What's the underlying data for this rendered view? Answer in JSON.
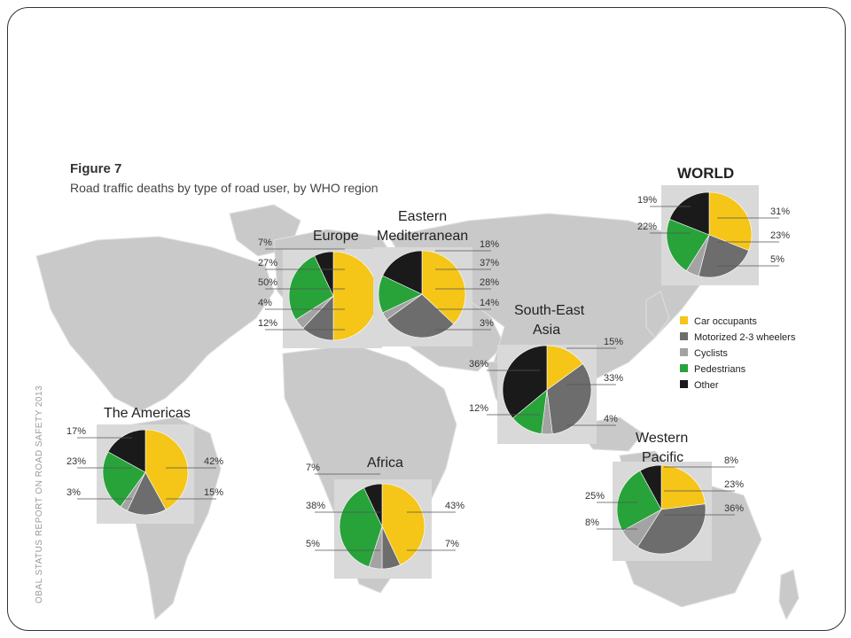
{
  "figure": {
    "label": "Figure 7",
    "subtitle": "Road traffic deaths by type of road user, by WHO region",
    "source": "OBAL STATUS REPORT ON ROAD SAFETY 2013"
  },
  "colors": {
    "car_occupants": "#f5c518",
    "motorized_2_3_wheelers": "#6d6d6d",
    "cyclists": "#a3a3a3",
    "pedestrians": "#27a33a",
    "other": "#1a1a1a"
  },
  "legend": [
    {
      "key": "car_occupants",
      "label": "Car occupants"
    },
    {
      "key": "motorized_2_3_wheelers",
      "label": "Motorized 2-3 wheelers"
    },
    {
      "key": "cyclists",
      "label": "Cyclists"
    },
    {
      "key": "pedestrians",
      "label": "Pedestrians"
    },
    {
      "key": "other",
      "label": "Other"
    }
  ],
  "chart_data": {
    "type": "pie",
    "categories": [
      "Car occupants",
      "Motorized 2-3 wheelers",
      "Cyclists",
      "Pedestrians",
      "Other"
    ],
    "title": "Road traffic deaths by type of road user, by WHO region",
    "unit": "%",
    "regions": [
      {
        "name": "WORLD",
        "values": [
          31,
          23,
          5,
          22,
          19
        ],
        "labels": {
          "left": [
            "19%",
            "22%"
          ],
          "right": [
            "31%",
            "23%",
            "5%"
          ]
        }
      },
      {
        "name": "Europe",
        "values": [
          50,
          12,
          4,
          27,
          7
        ],
        "labels": {
          "left": [
            "7%",
            "27%",
            "50%",
            "4%",
            "12%"
          ]
        }
      },
      {
        "name": "Eastern Mediterranean",
        "values": [
          37,
          28,
          3,
          14,
          18
        ],
        "labels": {
          "right": [
            "18%",
            "37%",
            "28%",
            "14%",
            "3%"
          ]
        }
      },
      {
        "name": "South-East Asia",
        "values": [
          15,
          33,
          4,
          12,
          36
        ],
        "labels": {
          "left": [
            "36%",
            "12%"
          ],
          "right": [
            "15%",
            "33%",
            "4%"
          ]
        }
      },
      {
        "name": "The Americas",
        "values": [
          42,
          15,
          3,
          23,
          17
        ],
        "labels": {
          "left": [
            "17%",
            "23%",
            "3%"
          ],
          "right": [
            "42%",
            "15%"
          ]
        }
      },
      {
        "name": "Africa",
        "values": [
          43,
          7,
          5,
          38,
          7
        ],
        "labels": {
          "left": [
            "7%",
            "38%",
            "5%"
          ],
          "right": [
            "43%",
            "7%"
          ]
        }
      },
      {
        "name": "Western Pacific",
        "values": [
          23,
          36,
          8,
          25,
          8
        ],
        "labels": {
          "left": [
            "25%",
            "8%"
          ],
          "right": [
            "8%",
            "23%",
            "36%"
          ]
        }
      }
    ]
  }
}
